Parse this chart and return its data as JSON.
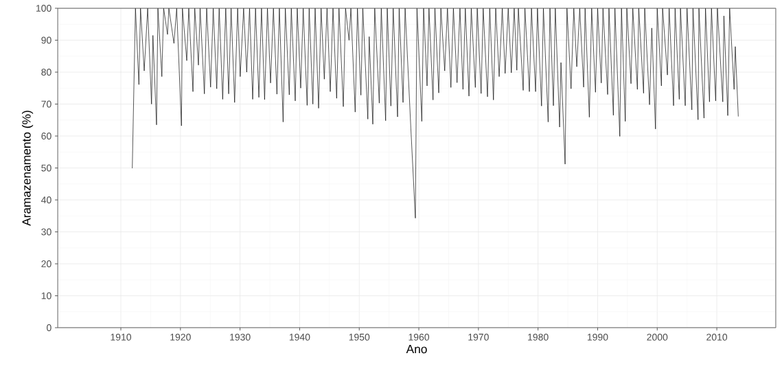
{
  "chart_data": {
    "type": "line",
    "xlabel": "Ano",
    "ylabel": "Aramazenamento (%)",
    "xlim": [
      1899.4,
      2019.9
    ],
    "ylim": [
      0,
      100
    ],
    "xticks": [
      1910,
      1920,
      1930,
      1940,
      1950,
      1960,
      1970,
      1980,
      1990,
      2000,
      2010
    ],
    "yticks": [
      0,
      10,
      20,
      30,
      40,
      50,
      60,
      70,
      80,
      90,
      100
    ],
    "grid": true,
    "series": [
      {
        "color": "#000000",
        "x": [
          1911.92,
          1912.45,
          1913.03,
          1913.3,
          1913.92,
          1914.5,
          1915.15,
          1915.38,
          1915.99,
          1916.22,
          1916.88,
          1917.18,
          1917.83,
          1918.06,
          1918.91,
          1919.37,
          1920.17,
          1920.33,
          1921.06,
          1921.4,
          1922.1,
          1922.4,
          1923.02,
          1923.3,
          1924.02,
          1924.4,
          1925.06,
          1925.5,
          1926.09,
          1926.5,
          1927.09,
          1927.6,
          1928.09,
          1928.5,
          1929.09,
          1929.6,
          1930.03,
          1930.6,
          1931.12,
          1931.6,
          1932.12,
          1932.6,
          1933.16,
          1933.6,
          1934.12,
          1934.6,
          1935.12,
          1935.6,
          1936.19,
          1936.6,
          1937.23,
          1937.6,
          1938.26,
          1938.6,
          1939.26,
          1939.6,
          1940.18,
          1940.6,
          1941.26,
          1941.6,
          1942.22,
          1942.6,
          1943.18,
          1943.6,
          1944.14,
          1944.6,
          1945.14,
          1945.6,
          1946.21,
          1946.6,
          1947.33,
          1947.7,
          1948.29,
          1948.6,
          1949.32,
          1949.7,
          1950.28,
          1950.6,
          1951.44,
          1951.67,
          1952.28,
          1952.6,
          1953.36,
          1953.7,
          1954.43,
          1954.7,
          1955.31,
          1955.7,
          1956.43,
          1956.7,
          1957.35,
          1957.7,
          1958.66,
          1959.42,
          1959.69,
          1960.5,
          1960.8,
          1961.38,
          1961.7,
          1962.38,
          1962.7,
          1963.34,
          1963.7,
          1964.34,
          1964.8,
          1965.38,
          1965.8,
          1966.41,
          1966.9,
          1967.41,
          1967.8,
          1968.41,
          1968.8,
          1969.48,
          1969.8,
          1970.45,
          1970.8,
          1971.52,
          1971.9,
          1972.52,
          1972.9,
          1973.48,
          1974.0,
          1974.48,
          1975.0,
          1975.52,
          1976.0,
          1976.44,
          1976.7,
          1977.51,
          1977.8,
          1978.55,
          1978.9,
          1979.59,
          1979.9,
          1980.59,
          1980.9,
          1981.7,
          1982.0,
          1982.58,
          1982.9,
          1983.62,
          1983.85,
          1984.54,
          1984.85,
          1985.54,
          1986.0,
          1986.5,
          1987.0,
          1987.65,
          1987.9,
          1988.61,
          1989.0,
          1989.64,
          1990.0,
          1990.61,
          1990.9,
          1991.68,
          1991.9,
          1992.64,
          1992.9,
          1993.72,
          1994.0,
          1994.64,
          1994.9,
          1995.6,
          1995.9,
          1996.67,
          1996.9,
          1997.71,
          1997.9,
          1998.71,
          1999.09,
          1999.71,
          2000.0,
          2000.7,
          2000.9,
          2001.71,
          2002.0,
          2002.74,
          2003.0,
          2003.7,
          2003.9,
          2004.7,
          2005.0,
          2005.81,
          2006.0,
          2006.85,
          2007.0,
          2007.85,
          2008.1,
          2008.77,
          2009.1,
          2009.81,
          2010.1,
          2011.0,
          2011.19,
          2011.84,
          2012.15,
          2012.9,
          2013.1,
          2013.6
        ],
        "values": [
          50.0,
          100,
          76.1,
          100,
          80.4,
          100,
          70.0,
          91.5,
          63.5,
          100,
          78.6,
          100,
          91.8,
          100,
          89.0,
          100,
          63.2,
          100,
          83.6,
          100,
          73.9,
          100,
          82.2,
          100,
          73.2,
          100,
          75.3,
          100,
          74.8,
          100,
          71.5,
          100,
          73.2,
          100,
          70.5,
          100,
          78.6,
          100,
          80.0,
          100,
          71.5,
          100,
          72.1,
          100,
          71.4,
          100,
          76.6,
          100,
          73.1,
          100,
          64.4,
          100,
          72.9,
          100,
          71.0,
          100,
          75.0,
          100,
          69.6,
          100,
          70.0,
          100,
          68.7,
          100,
          77.8,
          100,
          73.9,
          100,
          71.8,
          100,
          69.2,
          100,
          90.0,
          100,
          67.5,
          100,
          72.8,
          100,
          65.3,
          91.1,
          63.7,
          100,
          70.3,
          100,
          64.8,
          100,
          69.4,
          100,
          66.0,
          100,
          70.5,
          100,
          62.4,
          34.3,
          100,
          64.6,
          100,
          75.7,
          100,
          71.3,
          100,
          73.5,
          100,
          80.4,
          100,
          75.2,
          100,
          76.7,
          100,
          74.6,
          100,
          72.5,
          100,
          75.2,
          100,
          73.3,
          100,
          72.3,
          100,
          71.3,
          100,
          78.6,
          100,
          79.6,
          100,
          79.8,
          100,
          80.6,
          100,
          74.3,
          100,
          73.9,
          100,
          73.9,
          100,
          69.4,
          100,
          64.4,
          100,
          69.5,
          100,
          62.8,
          83.0,
          51.2,
          100,
          74.8,
          100,
          81.7,
          100,
          75.3,
          100,
          65.9,
          100,
          73.7,
          100,
          76.6,
          100,
          73.0,
          100,
          66.5,
          100,
          59.9,
          100,
          64.6,
          100,
          76.4,
          100,
          74.6,
          100,
          73.4,
          100,
          69.8,
          93.8,
          62.2,
          100,
          75.7,
          100,
          79.1,
          100,
          69.5,
          100,
          71.5,
          100,
          69.5,
          100,
          68.2,
          100,
          65.1,
          100,
          65.6,
          100,
          70.7,
          100,
          71.0,
          100,
          70.7,
          97.6,
          66.4,
          100,
          74.6,
          88,
          66.2
        ]
      }
    ]
  }
}
